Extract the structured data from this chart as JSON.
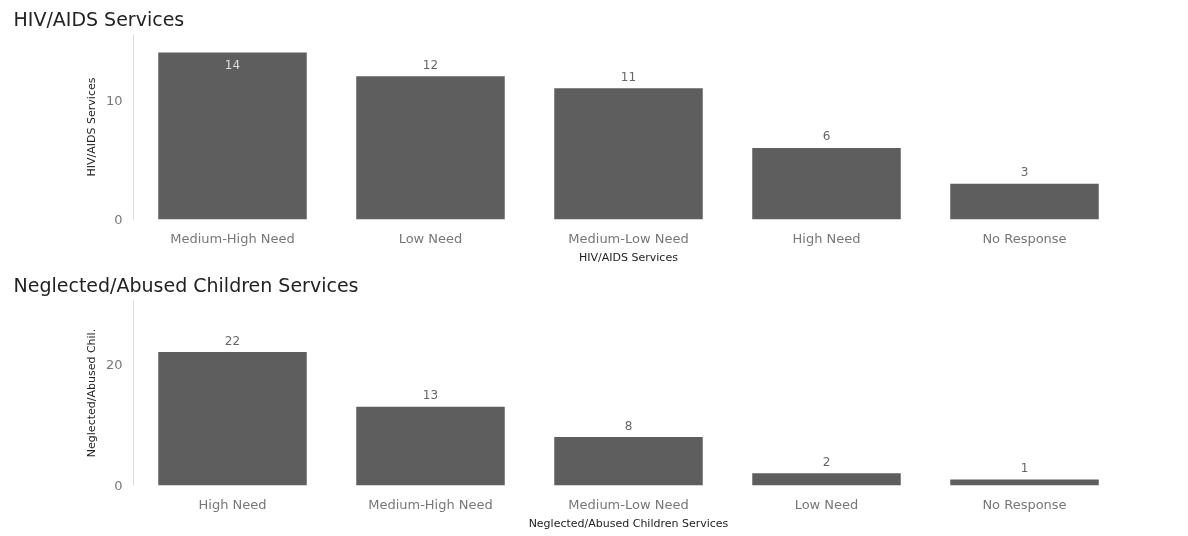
{
  "chart_data": [
    {
      "type": "bar",
      "title": "HIV/AIDS Services",
      "xlabel": "HIV/AIDS Services",
      "ylabel": "HIV/AIDS Services",
      "categories": [
        "Medium-High Need",
        "Low Need",
        "Medium-Low Need",
        "High Need",
        "No Response"
      ],
      "values": [
        14,
        12,
        11,
        6,
        3
      ],
      "color": "#5e5e5e",
      "ylim": [
        0,
        15.5
      ],
      "yticks": [
        0,
        10
      ],
      "grid": false,
      "data_labels": true
    },
    {
      "type": "bar",
      "title": "Neglected/Abused Children Services",
      "xlabel": "Neglected/Abused Children Services",
      "ylabel": "Neglected/Abused Chil.",
      "categories": [
        "High Need",
        "Medium-High Need",
        "Medium-Low Need",
        "Low Need",
        "No Response"
      ],
      "values": [
        22,
        13,
        8,
        2,
        1
      ],
      "color": "#5e5e5e",
      "ylim": [
        0,
        30.5
      ],
      "yticks": [
        0,
        20
      ],
      "grid": false,
      "data_labels": true
    }
  ]
}
